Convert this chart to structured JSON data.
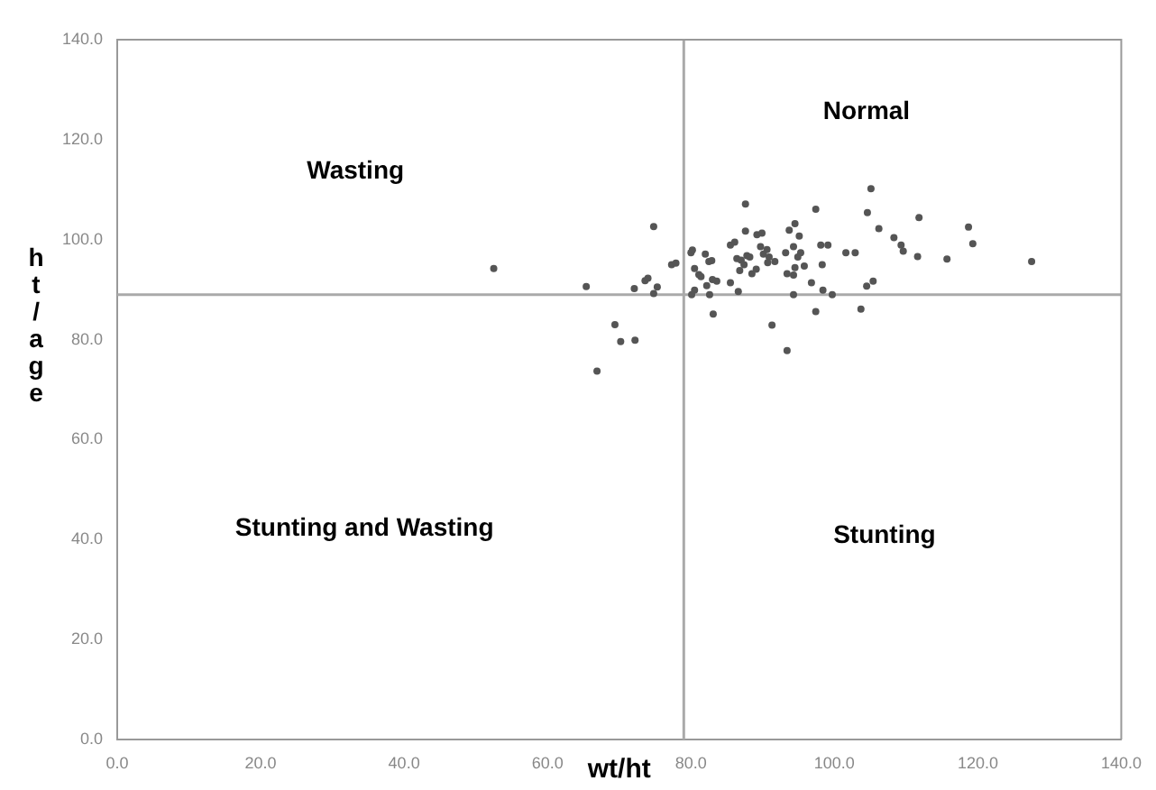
{
  "chart_data": {
    "type": "scatter",
    "xlabel": "wt/ht",
    "ylabel": "ht/age",
    "marker": "circle",
    "grid": false,
    "legend": false,
    "xlim": [
      0,
      140
    ],
    "ylim": [
      0,
      140
    ],
    "xticks": [
      {
        "value": 0,
        "label": "0.0"
      },
      {
        "value": 20,
        "label": "20.0"
      },
      {
        "value": 40,
        "label": "40.0"
      },
      {
        "value": 60,
        "label": "60.0"
      },
      {
        "value": 80,
        "label": "80.0"
      },
      {
        "value": 100,
        "label": "100.0"
      },
      {
        "value": 120,
        "label": "120.0"
      },
      {
        "value": 140,
        "label": "140.0"
      }
    ],
    "yticks": [
      {
        "value": 0,
        "label": "0.0"
      },
      {
        "value": 20,
        "label": "20.0"
      },
      {
        "value": 40,
        "label": "40.0"
      },
      {
        "value": 60,
        "label": "60.0"
      },
      {
        "value": 80,
        "label": "80.0"
      },
      {
        "value": 100,
        "label": "100.0"
      },
      {
        "value": 120,
        "label": "120.0"
      },
      {
        "value": 140,
        "label": "140.0"
      }
    ],
    "ref_lines": [
      {
        "axis": "x",
        "value": 79,
        "color": "#aaaaaa"
      },
      {
        "axis": "y",
        "value": 89,
        "color": "#aaaaaa"
      }
    ],
    "annotations": [
      "Normal",
      "Wasting",
      "Stunting and Wasting",
      "Stunting"
    ],
    "series": [
      {
        "color": "#555555",
        "x": [
          52.5,
          65.4,
          74.8,
          69.4,
          70.2,
          72.2,
          66.9,
          72.1,
          73.6,
          74.0,
          75.3,
          74.8,
          77.3,
          77.9,
          80.0,
          80.2,
          87.6,
          82.0,
          82.5,
          82.9,
          80.5,
          81.1,
          81.4,
          83.0,
          83.6,
          82.2,
          80.5,
          80.1,
          82.6,
          83.1,
          85.5,
          86.6,
          85.5,
          86.1,
          87.6,
          86.4,
          87.0,
          87.8,
          88.2,
          88.5,
          86.8,
          87.4,
          89.2,
          89.9,
          89.7,
          90.6,
          90.1,
          90.9,
          90.7,
          91.7,
          89.1,
          93.7,
          94.5,
          95.1,
          94.3,
          95.3,
          94.9,
          93.2,
          93.4,
          94.3,
          94.5,
          95.8,
          94.3,
          91.3,
          93.4,
          97.4,
          98.1,
          99.1,
          98.3,
          96.8,
          98.4,
          99.7,
          97.4,
          101.6,
          102.9,
          103.7,
          104.5,
          105.4,
          105.1,
          104.6,
          106.2,
          108.3,
          109.3,
          109.6,
          111.8,
          111.6,
          115.7,
          118.7,
          119.3,
          127.5
        ],
        "values": [
          94.2,
          90.6,
          102.6,
          83.0,
          79.6,
          79.9,
          73.7,
          90.2,
          91.8,
          92.3,
          90.5,
          89.2,
          95.0,
          95.3,
          97.4,
          97.9,
          107.1,
          97.1,
          95.6,
          95.8,
          94.2,
          93.0,
          92.6,
          92.0,
          91.7,
          90.8,
          89.9,
          89.0,
          89.0,
          85.1,
          91.4,
          89.6,
          98.9,
          99.5,
          101.7,
          96.2,
          95.9,
          96.8,
          96.5,
          93.2,
          93.8,
          95.0,
          101.0,
          101.3,
          98.6,
          98.0,
          97.1,
          96.5,
          95.4,
          95.6,
          94.1,
          101.9,
          103.2,
          100.7,
          98.6,
          97.4,
          96.5,
          97.4,
          93.2,
          92.9,
          94.4,
          94.7,
          89.0,
          82.9,
          77.8,
          106.1,
          98.9,
          98.9,
          95.0,
          91.4,
          89.9,
          89.0,
          85.6,
          97.4,
          97.4,
          86.1,
          90.7,
          91.7,
          110.2,
          105.4,
          102.2,
          100.4,
          98.9,
          97.7,
          104.4,
          96.6,
          96.1,
          102.5,
          99.2,
          95.6
        ]
      }
    ]
  }
}
